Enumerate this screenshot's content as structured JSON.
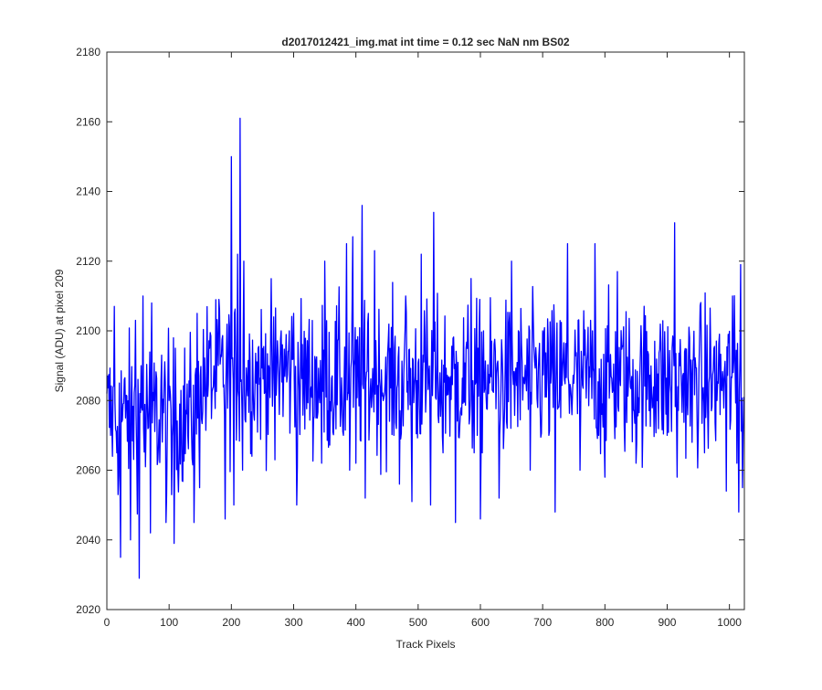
{
  "figure": {
    "background": "#ffffff",
    "axes_color": "#262626"
  },
  "chart_data": {
    "type": "line",
    "title": "d2017012421_img.mat int time = 0.12 sec  NaN nm BS02",
    "xlabel": "Track Pixels",
    "ylabel": "Signal (ADU) at pixel 209",
    "xlim": [
      0,
      1024
    ],
    "ylim": [
      2020,
      2180
    ],
    "xticks": [
      0,
      100,
      200,
      300,
      400,
      500,
      600,
      700,
      800,
      900,
      1000
    ],
    "yticks": [
      2020,
      2040,
      2060,
      2080,
      2100,
      2120,
      2140,
      2160,
      2180
    ],
    "grid": false,
    "box": true,
    "series": [
      {
        "color": "#0000ff",
        "description": "noisy trace, 1024 samples",
        "x": [
          0,
          12,
          16,
          18,
          20,
          22,
          30,
          38,
          46,
          52,
          55,
          58,
          62,
          70,
          72,
          75,
          82,
          88,
          95,
          100,
          104,
          108,
          110,
          114,
          130,
          140,
          145,
          150,
          165,
          180,
          190,
          200,
          204,
          210,
          214,
          218,
          220,
          240,
          260,
          270,
          280,
          300,
          305,
          320,
          345,
          350,
          380,
          385,
          390,
          395,
          400,
          410,
          415,
          420,
          425,
          430,
          460,
          470,
          480,
          490,
          505,
          520,
          525,
          530,
          540,
          560,
          585,
          590,
          595,
          600,
          605,
          630,
          650,
          680,
          700,
          720,
          740,
          760,
          780,
          784,
          790,
          800,
          820,
          850,
          880,
          900,
          912,
          916,
          920,
          940,
          960,
          980,
          995,
          1005,
          1012,
          1015,
          1018,
          1021,
          1023
        ],
        "y": [
          2082,
          2107,
          2065,
          2053,
          2085,
          2035,
          2075,
          2040,
          2103,
          2029,
          2090,
          2110,
          2061,
          2042,
          2108,
          2080,
          2063,
          2093,
          2045,
          2080,
          2053,
          2039,
          2095,
          2060,
          2070,
          2045,
          2105,
          2087,
          2095,
          2109,
          2046,
          2150,
          2050,
          2122,
          2161,
          2060,
          2120,
          2085,
          2090,
          2063,
          2100,
          2105,
          2050,
          2090,
          2062,
          2120,
          2070,
          2125,
          2060,
          2127,
          2062,
          2136,
          2052,
          2105,
          2078,
          2123,
          2080,
          2056,
          2110,
          2051,
          2122,
          2050,
          2134,
          2090,
          2065,
          2045,
          2115,
          2065,
          2070,
          2046,
          2100,
          2052,
          2120,
          2060,
          2100,
          2048,
          2125,
          2060,
          2100,
          2125,
          2070,
          2058,
          2117,
          2062,
          2097,
          2070,
          2131,
          2058,
          2090,
          2068,
          2065,
          2080,
          2054,
          2110,
          2062,
          2048,
          2119,
          2055,
          2081
        ]
      }
    ]
  }
}
